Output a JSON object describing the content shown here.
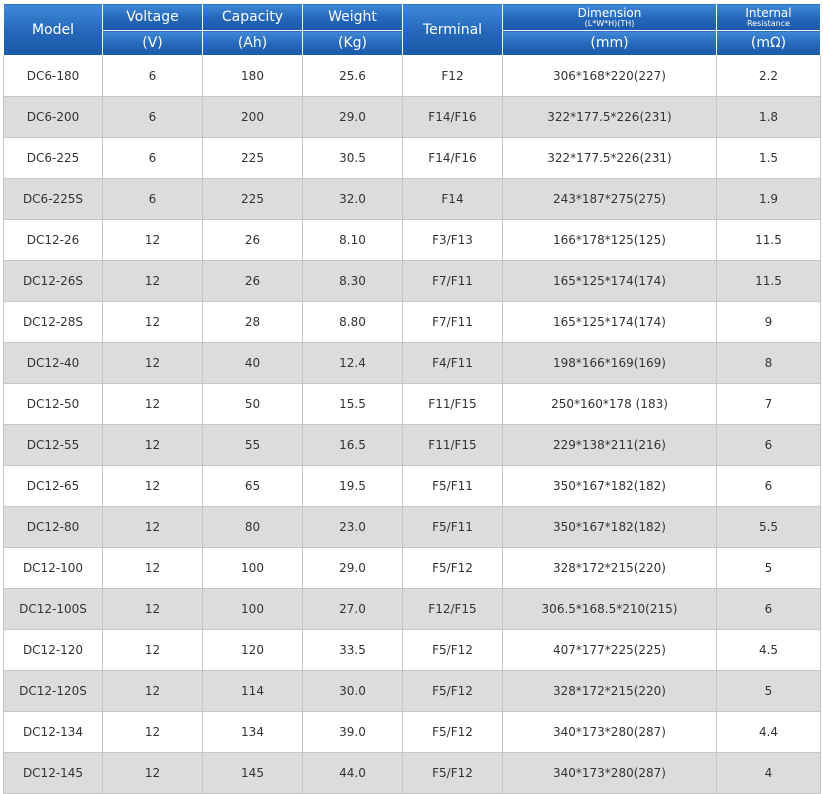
{
  "header": {
    "model": "Model",
    "voltage": "Voltage",
    "voltage_unit": "(V)",
    "capacity": "Capacity",
    "capacity_unit": "(Ah)",
    "weight": "Weight",
    "weight_unit": "(Kg)",
    "terminal": "Terminal",
    "dimension": "Dimension",
    "dimension_sub": "(L*W*H)(TH)",
    "dimension_unit": "(mm)",
    "internal": "Internal",
    "resistance": "Resistance",
    "resistance_unit": "(mΩ)"
  },
  "rows": [
    {
      "model": "DC6-180",
      "voltage": "6",
      "capacity": "180",
      "weight": "25.6",
      "terminal": "F12",
      "dimension": "306*168*220(227)",
      "resistance": "2.2"
    },
    {
      "model": "DC6-200",
      "voltage": "6",
      "capacity": "200",
      "weight": "29.0",
      "terminal": "F14/F16",
      "dimension": "322*177.5*226(231)",
      "resistance": "1.8"
    },
    {
      "model": "DC6-225",
      "voltage": "6",
      "capacity": "225",
      "weight": "30.5",
      "terminal": "F14/F16",
      "dimension": "322*177.5*226(231)",
      "resistance": "1.5"
    },
    {
      "model": "DC6-225S",
      "voltage": "6",
      "capacity": "225",
      "weight": "32.0",
      "terminal": "F14",
      "dimension": "243*187*275(275)",
      "resistance": "1.9"
    },
    {
      "model": "DC12-26",
      "voltage": "12",
      "capacity": "26",
      "weight": "8.10",
      "terminal": "F3/F13",
      "dimension": "166*178*125(125)",
      "resistance": "11.5"
    },
    {
      "model": "DC12-26S",
      "voltage": "12",
      "capacity": "26",
      "weight": "8.30",
      "terminal": "F7/F11",
      "dimension": "165*125*174(174)",
      "resistance": "11.5"
    },
    {
      "model": "DC12-28S",
      "voltage": "12",
      "capacity": "28",
      "weight": "8.80",
      "terminal": "F7/F11",
      "dimension": "165*125*174(174)",
      "resistance": "9"
    },
    {
      "model": "DC12-40",
      "voltage": "12",
      "capacity": "40",
      "weight": "12.4",
      "terminal": "F4/F11",
      "dimension": "198*166*169(169)",
      "resistance": "8"
    },
    {
      "model": "DC12-50",
      "voltage": "12",
      "capacity": "50",
      "weight": "15.5",
      "terminal": "F11/F15",
      "dimension": "250*160*178  (183)",
      "resistance": "7"
    },
    {
      "model": "DC12-55",
      "voltage": "12",
      "capacity": "55",
      "weight": "16.5",
      "terminal": "F11/F15",
      "dimension": "229*138*211(216)",
      "resistance": "6"
    },
    {
      "model": "DC12-65",
      "voltage": "12",
      "capacity": "65",
      "weight": "19.5",
      "terminal": "F5/F11",
      "dimension": "350*167*182(182)",
      "resistance": "6"
    },
    {
      "model": "DC12-80",
      "voltage": "12",
      "capacity": "80",
      "weight": "23.0",
      "terminal": "F5/F11",
      "dimension": "350*167*182(182)",
      "resistance": "5.5"
    },
    {
      "model": "DC12-100",
      "voltage": "12",
      "capacity": "100",
      "weight": "29.0",
      "terminal": "F5/F12",
      "dimension": "328*172*215(220)",
      "resistance": "5"
    },
    {
      "model": "DC12-100S",
      "voltage": "12",
      "capacity": "100",
      "weight": "27.0",
      "terminal": "F12/F15",
      "dimension": "306.5*168.5*210(215)",
      "resistance": "6"
    },
    {
      "model": "DC12-120",
      "voltage": "12",
      "capacity": "120",
      "weight": "33.5",
      "terminal": "F5/F12",
      "dimension": "407*177*225(225)",
      "resistance": "4.5"
    },
    {
      "model": "DC12-120S",
      "voltage": "12",
      "capacity": "114",
      "weight": "30.0",
      "terminal": "F5/F12",
      "dimension": "328*172*215(220)",
      "resistance": "5"
    },
    {
      "model": "DC12-134",
      "voltage": "12",
      "capacity": "134",
      "weight": "39.0",
      "terminal": "F5/F12",
      "dimension": "340*173*280(287)",
      "resistance": "4.4"
    },
    {
      "model": "DC12-145",
      "voltage": "12",
      "capacity": "145",
      "weight": "44.0",
      "terminal": "F5/F12",
      "dimension": "340*173*280(287)",
      "resistance": "4"
    }
  ]
}
